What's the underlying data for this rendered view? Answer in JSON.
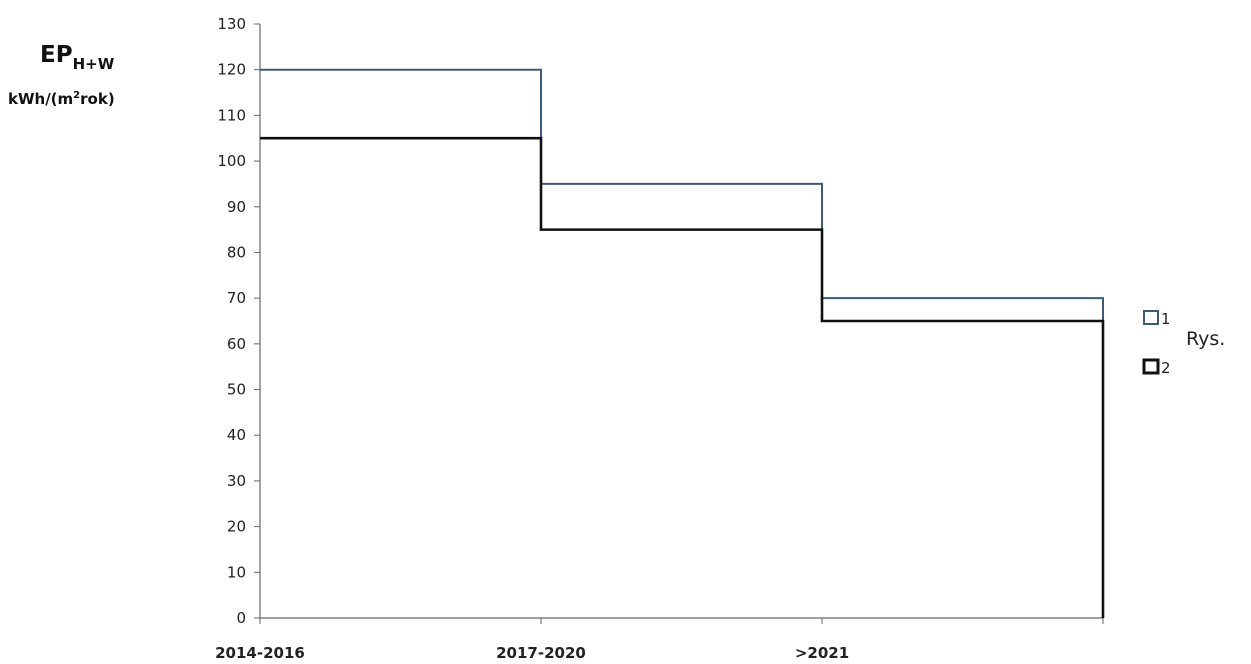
{
  "chart_data": {
    "type": "line",
    "subtype": "step",
    "categories": [
      "2014-2016",
      "2017-2020",
      ">2021"
    ],
    "series": [
      {
        "name": "1",
        "values": [
          120,
          95,
          70
        ],
        "color": "#3b5a80"
      },
      {
        "name": "2",
        "values": [
          105,
          85,
          65
        ],
        "color": "#111111"
      }
    ],
    "ylabel": {
      "main": "EP",
      "sub": "H+W",
      "unit_prefix": "kWh/(m",
      "unit_sup": "2",
      "unit_suffix": "rok)"
    },
    "ylim": [
      0,
      130
    ],
    "yticks": [
      "0",
      "10",
      "20",
      "30",
      "40",
      "50",
      "60",
      "70",
      "80",
      "90",
      "100",
      "110",
      "120",
      "130"
    ],
    "grid": false,
    "legend_position": "right",
    "trailing_text": "Rys."
  }
}
